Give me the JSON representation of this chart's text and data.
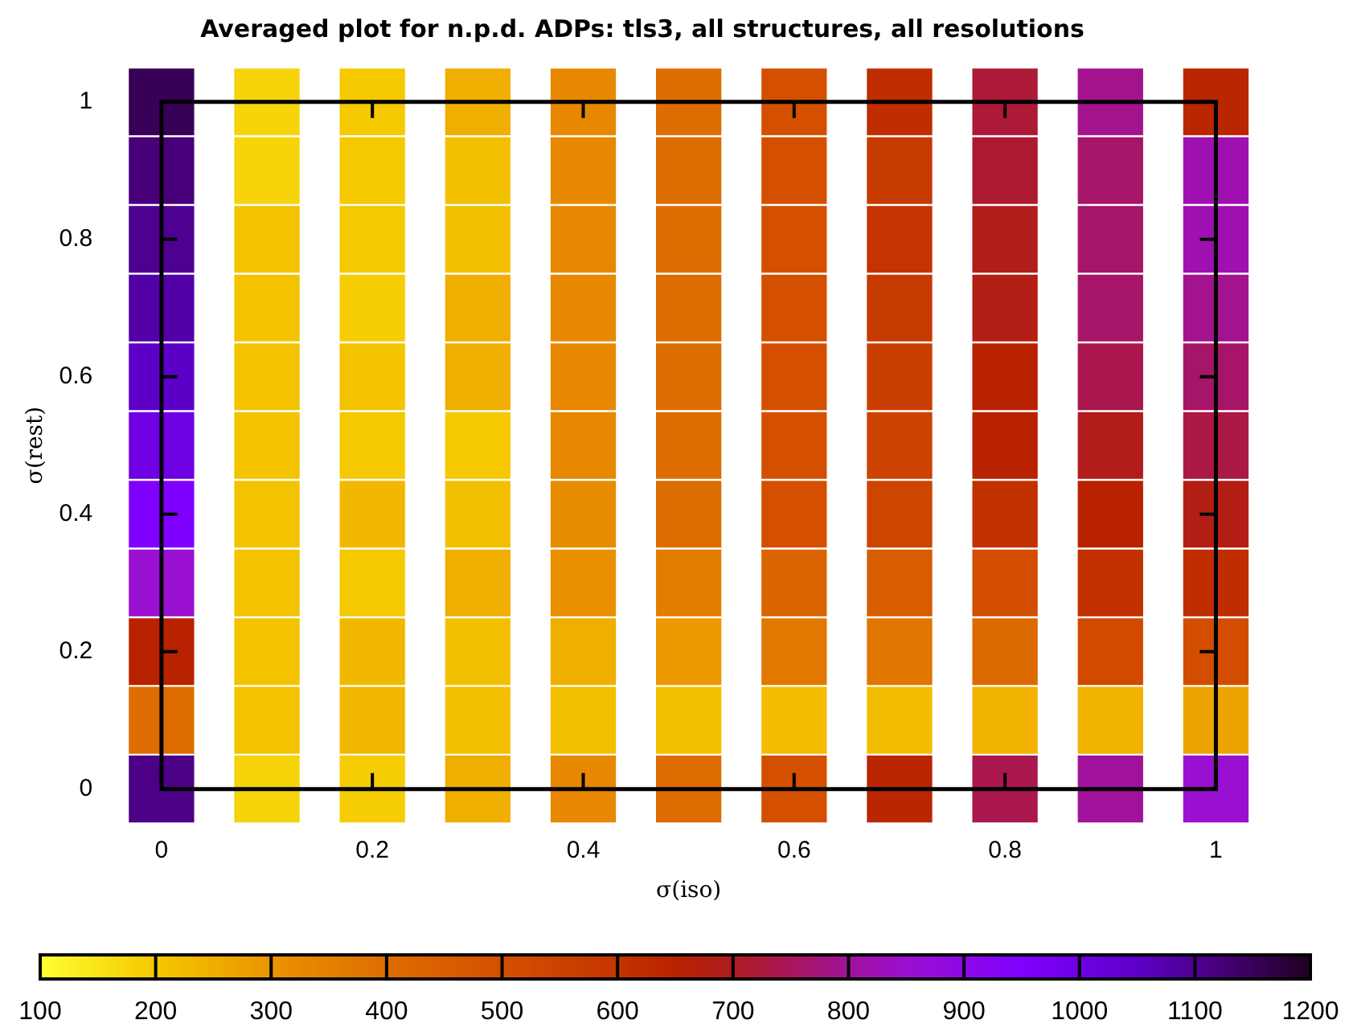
{
  "chart_data": {
    "type": "heatmap",
    "title": "Averaged plot for n.p.d. ADPs: tls3, all structures, all resolutions",
    "xlabel": "σ(iso)",
    "ylabel": "σ(rest)",
    "categories": [
      "0",
      null,
      "0.2",
      null,
      "0.4",
      null,
      "0.6",
      null,
      "0.8",
      null,
      "1"
    ],
    "y_categories": [
      "1",
      null,
      "0.8",
      null,
      "0.6",
      null,
      "0.4",
      null,
      "0.2",
      null,
      "0"
    ],
    "cells": [
      [
        1150,
        180,
        200,
        250,
        330,
        400,
        500,
        620,
        720,
        790,
        640
      ],
      [
        1120,
        180,
        200,
        215,
        330,
        400,
        500,
        580,
        715,
        760,
        820
      ],
      [
        1100,
        210,
        200,
        215,
        330,
        400,
        500,
        600,
        690,
        760,
        820
      ],
      [
        1080,
        210,
        190,
        250,
        330,
        400,
        500,
        580,
        680,
        760,
        790
      ],
      [
        1050,
        210,
        210,
        250,
        330,
        400,
        500,
        560,
        650,
        740,
        760
      ],
      [
        1000,
        210,
        200,
        200,
        330,
        400,
        500,
        550,
        650,
        690,
        730
      ],
      [
        950,
        210,
        230,
        215,
        320,
        400,
        500,
        540,
        610,
        650,
        680
      ],
      [
        850,
        210,
        200,
        250,
        310,
        360,
        430,
        460,
        510,
        610,
        620
      ],
      [
        650,
        210,
        230,
        215,
        250,
        290,
        370,
        380,
        410,
        520,
        510
      ],
      [
        400,
        210,
        230,
        215,
        215,
        215,
        220,
        220,
        240,
        240,
        270
      ],
      [
        1110,
        180,
        190,
        250,
        330,
        400,
        500,
        640,
        740,
        800,
        850
      ]
    ],
    "clim": [
      100,
      1200
    ],
    "cticks": [
      100,
      200,
      300,
      400,
      500,
      600,
      700,
      800,
      900,
      1000,
      1100,
      1200
    ]
  }
}
